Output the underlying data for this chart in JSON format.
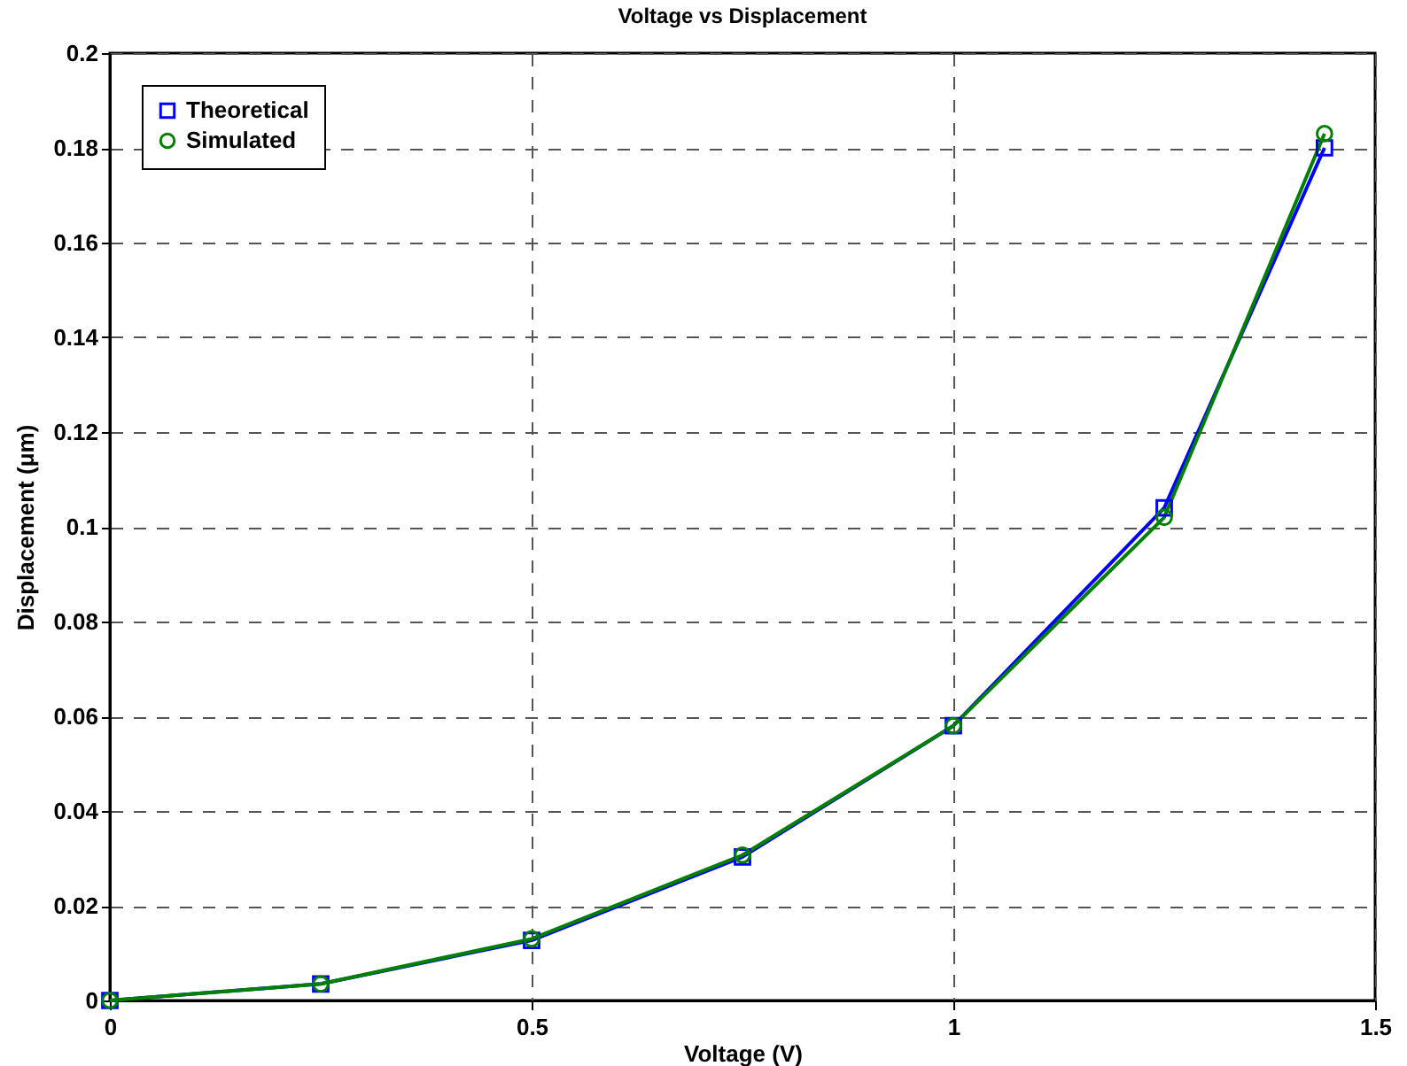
{
  "chart_data": {
    "type": "line",
    "title": "Voltage vs Displacement",
    "xlabel": "Voltage (V)",
    "ylabel": "Displacement (μm)",
    "x": [
      0,
      0.25,
      0.5,
      0.75,
      1,
      1.25,
      1.44
    ],
    "series": [
      {
        "name": "Theoretical",
        "color": "#0000ff",
        "marker": "square",
        "values": [
          0,
          0.0035,
          0.0127,
          0.0303,
          0.058,
          0.104,
          0.18
        ]
      },
      {
        "name": "Simulated",
        "color": "#008000",
        "marker": "circle",
        "values": [
          0,
          0.0035,
          0.013,
          0.0307,
          0.058,
          0.102,
          0.183
        ]
      }
    ],
    "xlim": [
      0,
      1.5
    ],
    "xticks": [
      0,
      0.5,
      1,
      1.5
    ],
    "ylim": [
      0,
      0.2
    ],
    "yticks": [
      0,
      0.02,
      0.04,
      0.06,
      0.08,
      0.1,
      0.12,
      0.14,
      0.16,
      0.18,
      0.2
    ],
    "grid": true,
    "legend": "top left",
    "line_style": "solid"
  }
}
